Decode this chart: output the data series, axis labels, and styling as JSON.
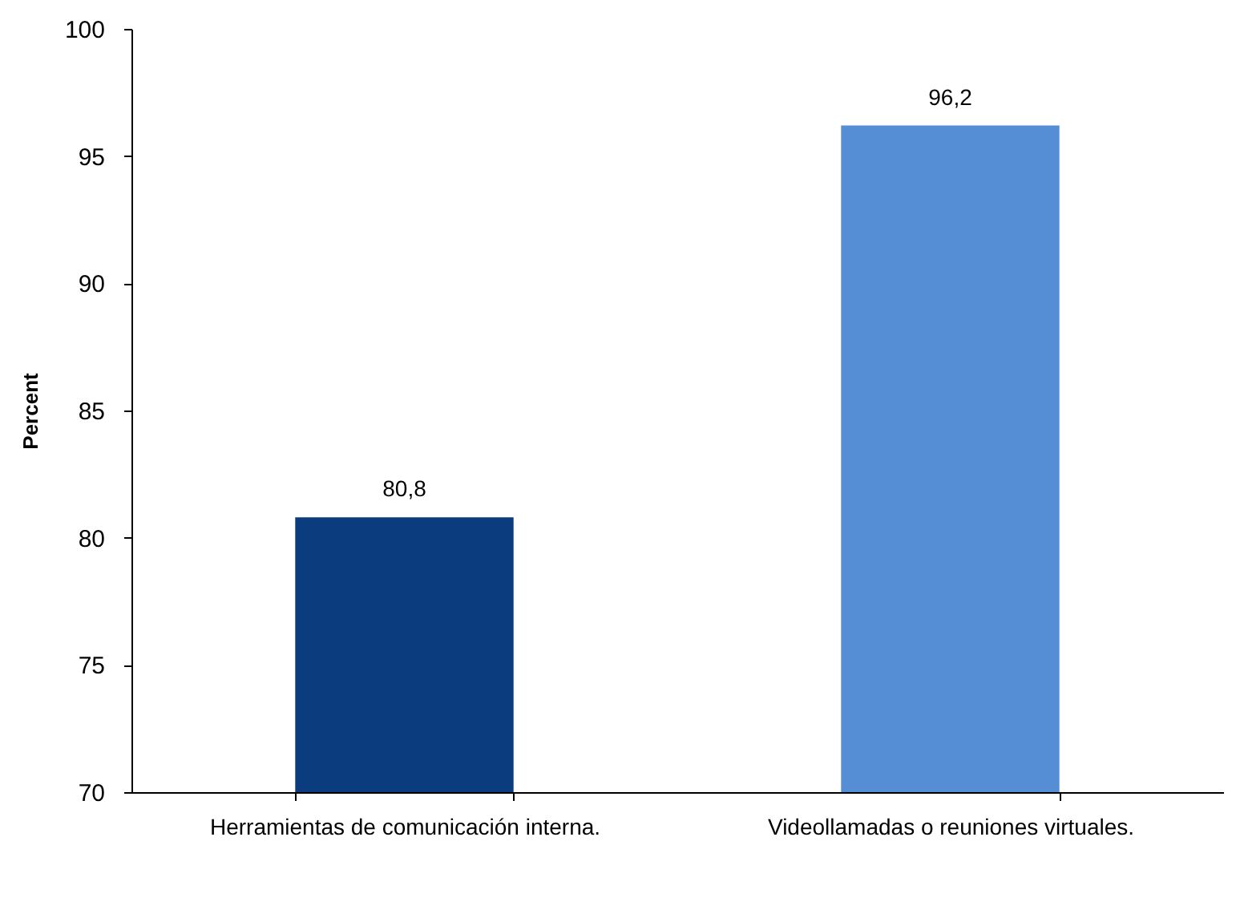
{
  "chart_data": {
    "type": "bar",
    "categories": [
      "Herramientas de comunicación interna.",
      "Videollamadas o reuniones virtuales."
    ],
    "values": [
      80.8,
      96.2
    ],
    "colors": [
      "#0b3d7e",
      "#558ed5"
    ],
    "value_labels": [
      "80,8",
      "96,2"
    ],
    "ylabel": "Percent",
    "ylim": [
      70,
      100
    ],
    "yticks": [
      70,
      75,
      80,
      85,
      90,
      95,
      100
    ]
  }
}
